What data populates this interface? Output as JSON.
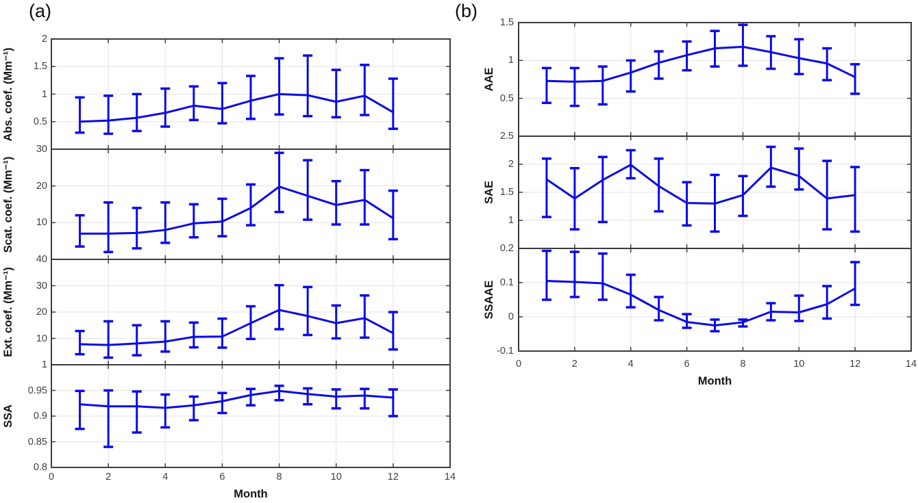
{
  "figure": {
    "panel_a_label": "(a)",
    "panel_b_label": "(b)",
    "xlabel": "Month",
    "colors": {
      "line": "#0a0ae8",
      "grid": "#e3e3e3",
      "axis": "#3b3b3b",
      "tick_text": "#3f3f3f",
      "label_text": "#141414"
    }
  },
  "chart_data": [
    {
      "id": "abs-coef",
      "column": "a",
      "type": "line",
      "ylabel": "Abs. coef. (Mm⁻¹)",
      "x": [
        1,
        2,
        3,
        4,
        5,
        6,
        7,
        8,
        9,
        10,
        11,
        12
      ],
      "y": [
        0.5,
        0.52,
        0.57,
        0.66,
        0.79,
        0.73,
        0.88,
        1.0,
        0.98,
        0.86,
        0.97,
        0.67
      ],
      "err_lo": [
        0.3,
        0.28,
        0.33,
        0.41,
        0.53,
        0.47,
        0.55,
        0.63,
        0.6,
        0.58,
        0.62,
        0.37
      ],
      "err_hi": [
        0.94,
        0.97,
        1.0,
        1.1,
        1.14,
        1.2,
        1.33,
        1.65,
        1.7,
        1.44,
        1.53,
        1.28
      ],
      "xlim": [
        0,
        14
      ],
      "ylim": [
        0,
        2
      ],
      "xticks": [
        0,
        2,
        4,
        6,
        8,
        10,
        12,
        14
      ],
      "yticks": [
        0.5,
        1,
        1.5,
        2
      ],
      "ytick_labels": [
        "0.5",
        "1",
        "1.5",
        "2"
      ],
      "xtick_labels": null,
      "xlabel": null,
      "grid": true
    },
    {
      "id": "scat-coef",
      "column": "a",
      "type": "line",
      "ylabel": "Scat. coef. (Mm⁻¹)",
      "x": [
        1,
        2,
        3,
        4,
        5,
        6,
        7,
        8,
        9,
        10,
        11,
        12
      ],
      "y": [
        7.0,
        7.0,
        7.2,
        8.0,
        9.8,
        10.3,
        14.0,
        19.8,
        17.3,
        14.8,
        16.2,
        11.2
      ],
      "err_lo": [
        3.5,
        2.0,
        3.0,
        4.5,
        6.0,
        6.3,
        9.3,
        12.9,
        10.8,
        9.5,
        9.5,
        5.5
      ],
      "err_hi": [
        12.0,
        15.5,
        14.0,
        15.5,
        15.0,
        16.5,
        20.4,
        29.0,
        27.0,
        21.3,
        24.3,
        18.7
      ],
      "xlim": [
        0,
        14
      ],
      "ylim": [
        0,
        30
      ],
      "xticks": [
        0,
        2,
        4,
        6,
        8,
        10,
        12,
        14
      ],
      "yticks": [
        10,
        20,
        30
      ],
      "ytick_labels": [
        "10",
        "20",
        "30"
      ],
      "xtick_labels": null,
      "xlabel": null,
      "grid": true
    },
    {
      "id": "ext-coef",
      "column": "a",
      "type": "line",
      "ylabel": "Ext. coef. (Mm⁻¹)",
      "x": [
        1,
        2,
        3,
        4,
        5,
        6,
        7,
        8,
        9,
        10,
        11,
        12
      ],
      "y": [
        7.8,
        7.5,
        8.1,
        8.8,
        10.6,
        10.7,
        15.8,
        20.8,
        18.5,
        15.8,
        17.7,
        12.0
      ],
      "err_lo": [
        4.0,
        2.7,
        3.6,
        5.0,
        6.6,
        6.5,
        9.8,
        13.5,
        11.3,
        10.0,
        10.3,
        5.8
      ],
      "err_hi": [
        12.8,
        16.5,
        15.0,
        16.5,
        16.0,
        17.5,
        22.2,
        30.2,
        29.5,
        22.5,
        26.3,
        20.0
      ],
      "xlim": [
        0,
        14
      ],
      "ylim": [
        0,
        40
      ],
      "xticks": [
        0,
        2,
        4,
        6,
        8,
        10,
        12,
        14
      ],
      "yticks": [
        10,
        20,
        30,
        40
      ],
      "ytick_labels": [
        "10",
        "20",
        "30",
        "40"
      ],
      "xtick_labels": null,
      "xlabel": null,
      "grid": true
    },
    {
      "id": "ssa",
      "column": "a",
      "type": "line",
      "ylabel": "SSA",
      "x": [
        1,
        2,
        3,
        4,
        5,
        6,
        7,
        8,
        9,
        10,
        11,
        12
      ],
      "y": [
        0.923,
        0.919,
        0.919,
        0.916,
        0.921,
        0.929,
        0.941,
        0.949,
        0.943,
        0.938,
        0.94,
        0.936
      ],
      "err_lo": [
        0.875,
        0.84,
        0.868,
        0.878,
        0.892,
        0.906,
        0.921,
        0.931,
        0.923,
        0.915,
        0.915,
        0.9
      ],
      "err_hi": [
        0.949,
        0.95,
        0.948,
        0.942,
        0.938,
        0.945,
        0.953,
        0.959,
        0.954,
        0.952,
        0.953,
        0.952
      ],
      "xlim": [
        0,
        14
      ],
      "ylim": [
        0.8,
        1.0
      ],
      "xticks": [
        0,
        2,
        4,
        6,
        8,
        10,
        12,
        14
      ],
      "yticks": [
        0.8,
        0.85,
        0.9,
        0.95,
        1
      ],
      "ytick_labels": [
        "0.8",
        "0.85",
        "0.9",
        "0.95",
        "1"
      ],
      "xtick_labels": [
        "0",
        "2",
        "4",
        "6",
        "8",
        "10",
        "12",
        "14"
      ],
      "xlabel": "Month",
      "grid": true
    },
    {
      "id": "aae",
      "column": "b",
      "type": "line",
      "ylabel": "AAE",
      "x": [
        1,
        2,
        3,
        4,
        5,
        6,
        7,
        8,
        9,
        10,
        11,
        12
      ],
      "y": [
        0.73,
        0.72,
        0.73,
        0.84,
        0.97,
        1.07,
        1.16,
        1.18,
        1.11,
        1.03,
        0.96,
        0.78
      ],
      "err_lo": [
        0.44,
        0.4,
        0.42,
        0.59,
        0.76,
        0.87,
        0.92,
        0.93,
        0.89,
        0.82,
        0.74,
        0.56
      ],
      "err_hi": [
        0.9,
        0.9,
        0.92,
        1.0,
        1.12,
        1.25,
        1.39,
        1.47,
        1.32,
        1.28,
        1.16,
        0.95
      ],
      "xlim": [
        0,
        14
      ],
      "ylim": [
        0,
        1.5
      ],
      "xticks": [
        0,
        2,
        4,
        6,
        8,
        10,
        12,
        14
      ],
      "yticks": [
        0.5,
        1,
        1.5
      ],
      "ytick_labels": [
        "0.5",
        "1",
        "1.5"
      ],
      "xtick_labels": null,
      "xlabel": null,
      "grid": true
    },
    {
      "id": "sae",
      "column": "b",
      "type": "line",
      "ylabel": "SAE",
      "x": [
        1,
        2,
        3,
        4,
        5,
        6,
        7,
        8,
        9,
        10,
        11,
        12
      ],
      "y": [
        1.73,
        1.39,
        1.72,
        1.99,
        1.61,
        1.31,
        1.3,
        1.45,
        1.94,
        1.79,
        1.39,
        1.45
      ],
      "err_lo": [
        1.06,
        0.84,
        0.97,
        1.75,
        1.16,
        0.91,
        0.8,
        1.08,
        1.6,
        1.55,
        0.84,
        0.8
      ],
      "err_hi": [
        2.1,
        1.93,
        2.13,
        2.25,
        2.1,
        1.68,
        1.81,
        1.79,
        2.31,
        2.28,
        2.06,
        1.95
      ],
      "xlim": [
        0,
        14
      ],
      "ylim": [
        0.5,
        2.5
      ],
      "xticks": [
        0,
        2,
        4,
        6,
        8,
        10,
        12,
        14
      ],
      "yticks": [
        1,
        1.5,
        2,
        2.5
      ],
      "ytick_labels": [
        "1",
        "1.5",
        "2",
        "2.5"
      ],
      "xtick_labels": null,
      "xlabel": null,
      "grid": true
    },
    {
      "id": "ssaae",
      "column": "b",
      "type": "line",
      "ylabel": "SSAAE",
      "x": [
        1,
        2,
        3,
        4,
        5,
        6,
        7,
        8,
        9,
        10,
        11,
        12
      ],
      "y": [
        0.105,
        0.102,
        0.098,
        0.065,
        0.02,
        -0.015,
        -0.025,
        -0.016,
        0.015,
        0.013,
        0.037,
        0.083
      ],
      "err_lo": [
        0.05,
        0.058,
        0.05,
        0.028,
        -0.01,
        -0.032,
        -0.042,
        -0.028,
        -0.01,
        -0.012,
        -0.005,
        0.035
      ],
      "err_hi": [
        0.193,
        0.19,
        0.185,
        0.123,
        0.058,
        0.008,
        -0.008,
        -0.008,
        0.04,
        0.062,
        0.09,
        0.16
      ],
      "xlim": [
        0,
        14
      ],
      "ylim": [
        -0.1,
        0.2
      ],
      "xticks": [
        0,
        2,
        4,
        6,
        8,
        10,
        12,
        14
      ],
      "yticks": [
        -0.1,
        0,
        0.1,
        0.2
      ],
      "ytick_labels": [
        "-0.1",
        "0",
        "0.1",
        "0.2"
      ],
      "xtick_labels": [
        "0",
        "2",
        "4",
        "6",
        "8",
        "10",
        "12",
        "14"
      ],
      "xlabel": "Month",
      "grid": true
    }
  ]
}
